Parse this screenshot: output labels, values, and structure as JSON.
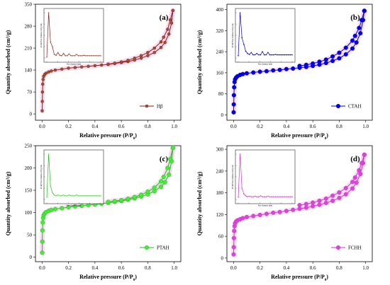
{
  "chart_data": [
    {
      "type": "line",
      "panel_label": "(a)",
      "xlabel": "Relative pressure (P/P0)",
      "ylabel": "Quantity absorbed (cm3/g)",
      "xlim": [
        -0.05,
        1.05
      ],
      "ylim": [
        -20,
        350
      ],
      "xticks": [
        0.0,
        0.2,
        0.4,
        0.6,
        0.8,
        1.0
      ],
      "yticks": [
        0,
        70,
        140,
        210,
        280,
        350
      ],
      "legend": "Hβ",
      "legend_position": "bottom-right",
      "color": "#8b1a1a",
      "marker_fill": "#a0522d",
      "marker": "circle-small",
      "adsorption": [
        [
          0.001,
          10
        ],
        [
          0.002,
          40
        ],
        [
          0.003,
          70
        ],
        [
          0.005,
          95
        ],
        [
          0.008,
          110
        ],
        [
          0.012,
          120
        ],
        [
          0.02,
          126
        ],
        [
          0.03,
          130
        ],
        [
          0.05,
          134
        ],
        [
          0.07,
          137
        ],
        [
          0.1,
          140
        ],
        [
          0.15,
          143
        ],
        [
          0.2,
          146
        ],
        [
          0.25,
          148
        ],
        [
          0.3,
          150
        ],
        [
          0.35,
          152
        ],
        [
          0.4,
          154
        ],
        [
          0.45,
          156
        ],
        [
          0.5,
          158
        ],
        [
          0.55,
          161
        ],
        [
          0.6,
          164
        ],
        [
          0.65,
          167
        ],
        [
          0.7,
          172
        ],
        [
          0.75,
          178
        ],
        [
          0.8,
          186
        ],
        [
          0.85,
          196
        ],
        [
          0.9,
          212
        ],
        [
          0.93,
          228
        ],
        [
          0.96,
          255
        ],
        [
          0.98,
          290
        ],
        [
          0.99,
          330
        ]
      ],
      "desorption": [
        [
          0.99,
          330
        ],
        [
          0.97,
          300
        ],
        [
          0.95,
          270
        ],
        [
          0.92,
          245
        ],
        [
          0.9,
          230
        ],
        [
          0.85,
          210
        ],
        [
          0.8,
          196
        ],
        [
          0.75,
          186
        ],
        [
          0.7,
          178
        ],
        [
          0.65,
          171
        ],
        [
          0.6,
          166
        ],
        [
          0.55,
          162
        ],
        [
          0.5,
          159
        ]
      ],
      "inset": {
        "xlabel": "Pore diameter (nm)",
        "ylabel": "dV/dD Pore Volume (cm3/g·nm)",
        "peak_x": 0.15,
        "profile": [
          0.02,
          1.0,
          0.35,
          0.25,
          0.08,
          0.06,
          0.12,
          0.06,
          0.05,
          0.1,
          0.05,
          0.05,
          0.09,
          0.05,
          0.05,
          0.05,
          0.08,
          0.05,
          0.05,
          0.05,
          0.06,
          0.05,
          0.05,
          0.05,
          0.05,
          0.05,
          0.05,
          0.05,
          0.05,
          0.05
        ]
      }
    },
    {
      "type": "line",
      "panel_label": "(b)",
      "xlabel": "Relative pressure (P/P0)",
      "ylabel": "Quantity absorbed (cm3/g)",
      "xlim": [
        -0.05,
        1.05
      ],
      "ylim": [
        -20,
        420
      ],
      "xticks": [
        0.0,
        0.2,
        0.4,
        0.6,
        0.8,
        1.0
      ],
      "yticks": [
        0,
        80,
        160,
        240,
        320,
        400
      ],
      "legend": "CTAH",
      "legend_position": "bottom-right",
      "color": "#0000cc",
      "marker_fill": "#0000ee",
      "marker": "circle-large",
      "adsorption": [
        [
          0.001,
          10
        ],
        [
          0.002,
          40
        ],
        [
          0.003,
          75
        ],
        [
          0.005,
          105
        ],
        [
          0.008,
          125
        ],
        [
          0.012,
          135
        ],
        [
          0.02,
          142
        ],
        [
          0.03,
          147
        ],
        [
          0.05,
          152
        ],
        [
          0.07,
          155
        ],
        [
          0.1,
          158
        ],
        [
          0.15,
          161
        ],
        [
          0.2,
          164
        ],
        [
          0.25,
          166
        ],
        [
          0.3,
          169
        ],
        [
          0.35,
          171
        ],
        [
          0.4,
          174
        ],
        [
          0.45,
          176
        ],
        [
          0.5,
          179
        ],
        [
          0.55,
          182
        ],
        [
          0.6,
          186
        ],
        [
          0.65,
          191
        ],
        [
          0.7,
          197
        ],
        [
          0.75,
          205
        ],
        [
          0.8,
          215
        ],
        [
          0.85,
          230
        ],
        [
          0.9,
          252
        ],
        [
          0.93,
          275
        ],
        [
          0.96,
          310
        ],
        [
          0.98,
          360
        ],
        [
          0.99,
          395
        ]
      ],
      "desorption": [
        [
          0.99,
          395
        ],
        [
          0.97,
          360
        ],
        [
          0.95,
          330
        ],
        [
          0.92,
          300
        ],
        [
          0.9,
          282
        ],
        [
          0.85,
          255
        ],
        [
          0.8,
          236
        ],
        [
          0.75,
          222
        ],
        [
          0.7,
          210
        ],
        [
          0.65,
          202
        ],
        [
          0.6,
          195
        ],
        [
          0.55,
          190
        ],
        [
          0.5,
          186
        ]
      ],
      "inset": {
        "xlabel": "Pore diameter (nm)",
        "ylabel": "dV/dD Pore Volume (cm3/g·nm)",
        "peak_x": 0.12,
        "profile": [
          0.05,
          1.0,
          0.45,
          0.3,
          0.15,
          0.1,
          0.08,
          0.12,
          0.07,
          0.07,
          0.1,
          0.07,
          0.07,
          0.14,
          0.07,
          0.07,
          0.12,
          0.07,
          0.07,
          0.07,
          0.08,
          0.07,
          0.07,
          0.07,
          0.07,
          0.07,
          0.07,
          0.07,
          0.07,
          0.07
        ]
      }
    },
    {
      "type": "line",
      "panel_label": "(c)",
      "xlabel": "Relative pressure (P/P0)",
      "ylabel": "Quantity absorbed (cm3/g)",
      "xlim": [
        -0.05,
        1.05
      ],
      "ylim": [
        -10,
        250
      ],
      "xticks": [
        0.0,
        0.2,
        0.4,
        0.6,
        0.8,
        1.0
      ],
      "yticks": [
        0,
        50,
        100,
        150,
        200,
        250
      ],
      "legend": "PTAH",
      "legend_position": "bottom-right",
      "color": "#22bb22",
      "marker_fill": "#44ee33",
      "marker": "circle-large",
      "adsorption": [
        [
          0.001,
          10
        ],
        [
          0.002,
          35
        ],
        [
          0.003,
          60
        ],
        [
          0.005,
          78
        ],
        [
          0.008,
          88
        ],
        [
          0.012,
          94
        ],
        [
          0.02,
          98
        ],
        [
          0.03,
          101
        ],
        [
          0.05,
          104
        ],
        [
          0.07,
          106
        ],
        [
          0.1,
          108
        ],
        [
          0.15,
          110
        ],
        [
          0.2,
          112
        ],
        [
          0.25,
          114
        ],
        [
          0.3,
          115
        ],
        [
          0.35,
          117
        ],
        [
          0.4,
          118
        ],
        [
          0.45,
          120
        ],
        [
          0.5,
          122
        ],
        [
          0.55,
          124
        ],
        [
          0.6,
          126
        ],
        [
          0.65,
          129
        ],
        [
          0.7,
          132
        ],
        [
          0.75,
          136
        ],
        [
          0.8,
          141
        ],
        [
          0.85,
          148
        ],
        [
          0.9,
          158
        ],
        [
          0.93,
          168
        ],
        [
          0.96,
          185
        ],
        [
          0.98,
          215
        ],
        [
          0.99,
          245
        ]
      ],
      "desorption": [
        [
          0.99,
          245
        ],
        [
          0.97,
          220
        ],
        [
          0.95,
          200
        ],
        [
          0.92,
          180
        ],
        [
          0.9,
          170
        ],
        [
          0.85,
          156
        ],
        [
          0.8,
          147
        ],
        [
          0.75,
          140
        ],
        [
          0.7,
          135
        ],
        [
          0.65,
          131
        ],
        [
          0.6,
          128
        ],
        [
          0.55,
          126
        ],
        [
          0.5,
          124
        ]
      ],
      "inset": {
        "xlabel": "Pore diameter (nm)",
        "ylabel": "dV/dD Pore Volume (cm3/g·nm)",
        "peak_x": 0.1,
        "profile": [
          0.05,
          1.0,
          0.3,
          0.15,
          0.1,
          0.08,
          0.1,
          0.08,
          0.08,
          0.1,
          0.08,
          0.08,
          0.1,
          0.08,
          0.08,
          0.08,
          0.1,
          0.08,
          0.08,
          0.08,
          0.08,
          0.08,
          0.08,
          0.08,
          0.08,
          0.08,
          0.08,
          0.08,
          0.08,
          0.08
        ]
      }
    },
    {
      "type": "line",
      "panel_label": "(d)",
      "xlabel": "Relative pressure (P/P0)",
      "ylabel": "Quantity absorbed (cm3/g)",
      "xlim": [
        -0.05,
        1.05
      ],
      "ylim": [
        -10,
        310
      ],
      "xticks": [
        0.0,
        0.2,
        0.4,
        0.6,
        0.8,
        1.0
      ],
      "yticks": [
        0,
        60,
        120,
        180,
        240,
        300
      ],
      "legend": "FCHH",
      "legend_position": "bottom-right",
      "color": "#cc33cc",
      "marker_fill": "#dd44dd",
      "marker": "circle-large",
      "adsorption": [
        [
          0.001,
          10
        ],
        [
          0.002,
          30
        ],
        [
          0.003,
          55
        ],
        [
          0.005,
          75
        ],
        [
          0.008,
          88
        ],
        [
          0.012,
          96
        ],
        [
          0.02,
          101
        ],
        [
          0.03,
          104
        ],
        [
          0.05,
          107
        ],
        [
          0.07,
          110
        ],
        [
          0.1,
          113
        ],
        [
          0.15,
          116
        ],
        [
          0.2,
          119
        ],
        [
          0.25,
          122
        ],
        [
          0.3,
          125
        ],
        [
          0.35,
          127
        ],
        [
          0.4,
          130
        ],
        [
          0.45,
          133
        ],
        [
          0.5,
          136
        ],
        [
          0.55,
          139
        ],
        [
          0.6,
          143
        ],
        [
          0.65,
          147
        ],
        [
          0.7,
          152
        ],
        [
          0.75,
          158
        ],
        [
          0.8,
          166
        ],
        [
          0.85,
          176
        ],
        [
          0.9,
          192
        ],
        [
          0.93,
          208
        ],
        [
          0.96,
          232
        ],
        [
          0.98,
          262
        ],
        [
          0.99,
          285
        ]
      ],
      "desorption": [
        [
          0.99,
          285
        ],
        [
          0.97,
          262
        ],
        [
          0.95,
          242
        ],
        [
          0.92,
          222
        ],
        [
          0.9,
          210
        ],
        [
          0.85,
          193
        ],
        [
          0.8,
          181
        ],
        [
          0.75,
          172
        ],
        [
          0.7,
          164
        ],
        [
          0.65,
          158
        ],
        [
          0.6,
          153
        ],
        [
          0.55,
          149
        ],
        [
          0.5,
          146
        ]
      ],
      "inset": {
        "xlabel": "Pore diameter (nm)",
        "ylabel": "dV/dD Pore Volume (cm3/g·nm)",
        "peak_x": 0.1,
        "profile": [
          0.05,
          1.0,
          0.25,
          0.12,
          0.08,
          0.06,
          0.07,
          0.06,
          0.06,
          0.07,
          0.06,
          0.06,
          0.08,
          0.06,
          0.06,
          0.06,
          0.07,
          0.06,
          0.06,
          0.06,
          0.06,
          0.06,
          0.06,
          0.06,
          0.06,
          0.06,
          0.06,
          0.06,
          0.06,
          0.06
        ]
      }
    }
  ]
}
